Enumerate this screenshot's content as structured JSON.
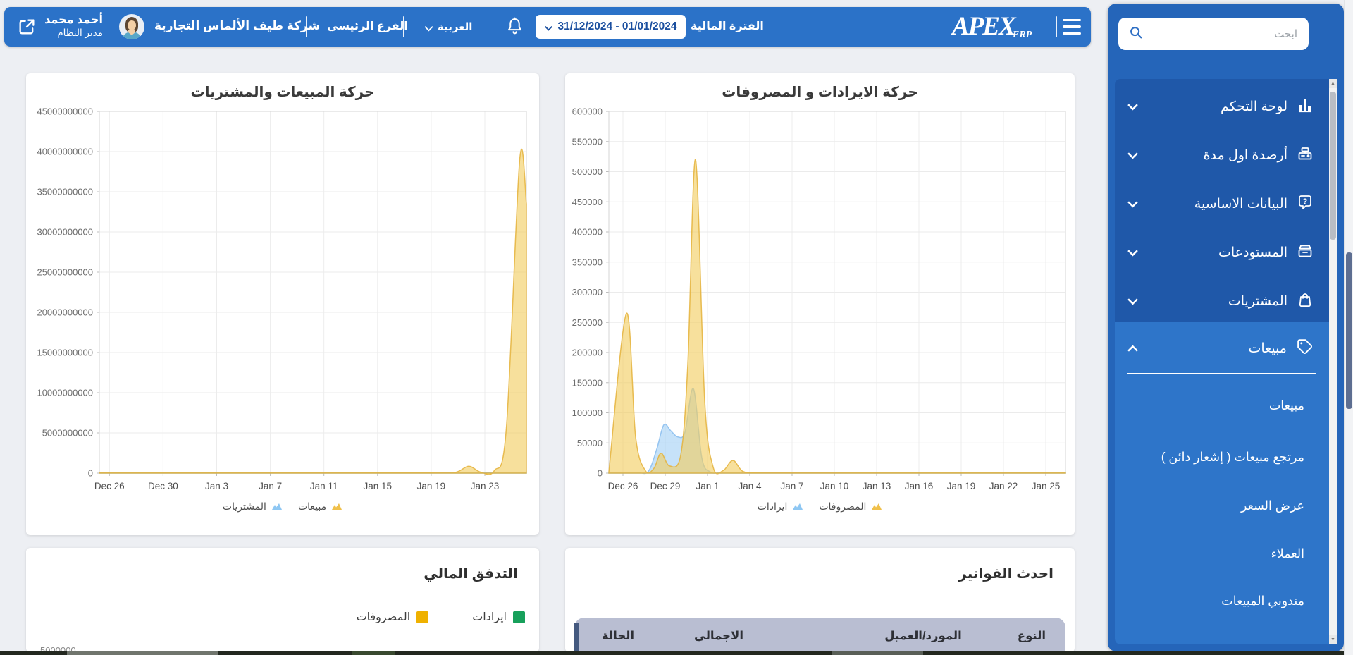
{
  "header": {
    "user_name": "أحمد محمد",
    "user_role": "مدير النظام",
    "company": "شركة طيف الألماس التجارية",
    "branch": "الفرع الرئيسي",
    "language": "العربية",
    "date_range": "31/12/2024 - 01/01/2024",
    "fiscal_period_label": "الفترة المالية",
    "logo_primary": "APEX",
    "logo_secondary": "ERP"
  },
  "sidebar": {
    "search_placeholder": "ابحث",
    "items": [
      {
        "label": "لوحة التحكم",
        "icon": "bar-chart-icon"
      },
      {
        "label": "أرصدة اول مدة",
        "icon": "cash-register-icon"
      },
      {
        "label": "البيانات الاساسية",
        "icon": "chat-question-icon"
      },
      {
        "label": "المستودعات",
        "icon": "warehouse-shelf-icon"
      },
      {
        "label": "المشتريات",
        "icon": "shopping-bag-icon"
      },
      {
        "label": "مبيعات",
        "icon": "tag-icon"
      }
    ],
    "sales_submenu": [
      "مبيعات",
      "مرتجع مبيعات ( إشعار دائن )",
      "عرض السعر",
      "العملاء",
      "مندوبي المبيعات"
    ]
  },
  "chart_data": [
    {
      "type": "area",
      "title": "حركة المبيعات والمشتريات",
      "ylim": [
        0,
        45000000000
      ],
      "ystep": 5000000000,
      "xdomain": [
        -0.75,
        31.1
      ],
      "grid": true,
      "legend_position": "bottom",
      "xticks": [
        {
          "d": 0,
          "label": "Dec 26"
        },
        {
          "d": 4,
          "label": "Dec 30"
        },
        {
          "d": 8,
          "label": "Jan 3"
        },
        {
          "d": 12,
          "label": "Jan 7"
        },
        {
          "d": 16,
          "label": "Jan 11"
        },
        {
          "d": 20,
          "label": "Jan 15"
        },
        {
          "d": 24,
          "label": "Jan 19"
        },
        {
          "d": 28,
          "label": "Jan 23"
        }
      ],
      "series": [
        {
          "name": "مبيعات",
          "marker": "#f0c04a",
          "fill": "rgba(242,205,96,0.62)",
          "stroke": "rgba(228,178,58,0.85)",
          "points": [
            [
              -0.75,
              40000000
            ],
            [
              4,
              40000000
            ],
            [
              10,
              40000000
            ],
            [
              16,
              40000000
            ],
            [
              21,
              50000000
            ],
            [
              24,
              60000000
            ],
            [
              25.8,
              90000000
            ],
            [
              26.8,
              850000000
            ],
            [
              27.7,
              120000000
            ],
            [
              28.7,
              300000000
            ],
            [
              29.6,
              5500000000
            ],
            [
              30.6,
              39000000000
            ],
            [
              31.1,
              33500000000
            ]
          ]
        },
        {
          "name": "المشتريات",
          "marker": "#8ec7f3",
          "fill": "rgba(151,202,244,0.55)",
          "stroke": "rgba(130,185,238,0.8)",
          "points": [
            [
              -0.75,
              20000000
            ],
            [
              6,
              20000000
            ],
            [
              12,
              20000000
            ],
            [
              18,
              20000000
            ],
            [
              24,
              25000000
            ],
            [
              27,
              55000000
            ],
            [
              29,
              35000000
            ],
            [
              31.1,
              25000000
            ]
          ]
        }
      ]
    },
    {
      "type": "area",
      "title": "حركة الايرادات و المصروفات",
      "ylim": [
        0,
        600000
      ],
      "ystep": 50000,
      "xdomain": [
        -1,
        31.4
      ],
      "grid": true,
      "legend_position": "bottom",
      "xticks": [
        {
          "d": 0,
          "label": "Dec 26"
        },
        {
          "d": 3,
          "label": "Dec 29"
        },
        {
          "d": 6,
          "label": "Jan 1"
        },
        {
          "d": 9,
          "label": "Jan 4"
        },
        {
          "d": 12,
          "label": "Jan 7"
        },
        {
          "d": 15,
          "label": "Jan 10"
        },
        {
          "d": 18,
          "label": "Jan 13"
        },
        {
          "d": 21,
          "label": "Jan 16"
        },
        {
          "d": 24,
          "label": "Jan 19"
        },
        {
          "d": 27,
          "label": "Jan 22"
        },
        {
          "d": 30,
          "label": "Jan 25"
        }
      ],
      "series": [
        {
          "name": "المصروفات",
          "marker": "#f0c04a",
          "fill": "rgba(242,205,96,0.62)",
          "stroke": "rgba(228,178,58,0.85)",
          "points": [
            [
              -1,
              2000
            ],
            [
              0.25,
              265000
            ],
            [
              0.9,
              60000
            ],
            [
              1.6,
              4000
            ],
            [
              2.2,
              8000
            ],
            [
              2.7,
              33000
            ],
            [
              3.3,
              12000
            ],
            [
              4.1,
              30000
            ],
            [
              4.6,
              180000
            ],
            [
              5.15,
              520000
            ],
            [
              5.8,
              120000
            ],
            [
              6.4,
              10000
            ],
            [
              7.1,
              4000
            ],
            [
              7.8,
              21000
            ],
            [
              8.5,
              3000
            ],
            [
              9.5,
              800
            ],
            [
              11,
              400
            ],
            [
              14,
              300
            ],
            [
              18,
              300
            ],
            [
              22,
              300
            ],
            [
              26,
              300
            ],
            [
              31.4,
              300
            ]
          ]
        },
        {
          "name": "ايرادات",
          "marker": "#8ec7f3",
          "fill": "rgba(151,202,244,0.55)",
          "stroke": "rgba(130,185,238,0.8)",
          "points": [
            [
              -1,
              300
            ],
            [
              1,
              500
            ],
            [
              1.8,
              3000
            ],
            [
              2.4,
              40000
            ],
            [
              2.9,
              80000
            ],
            [
              3.4,
              70000
            ],
            [
              3.9,
              60000
            ],
            [
              4.4,
              68000
            ],
            [
              5.0,
              140000
            ],
            [
              5.6,
              25000
            ],
            [
              6.2,
              2000
            ],
            [
              7,
              500
            ],
            [
              9,
              300
            ],
            [
              12,
              300
            ],
            [
              16,
              200
            ],
            [
              20,
              200
            ],
            [
              25,
              200
            ],
            [
              31.4,
              200
            ]
          ]
        }
      ]
    }
  ],
  "cashflow": {
    "title": "التدفق المالي",
    "legend": [
      {
        "label": "ايرادات",
        "color": "#17a05b"
      },
      {
        "label": "المصروفات",
        "color": "#efb100"
      }
    ],
    "clipped_axis_label": "5000000"
  },
  "invoices": {
    "title": "احدث الفواتير",
    "columns": [
      "النوع",
      "المورد/العميل",
      "الاجمالي",
      "الحالة"
    ]
  }
}
